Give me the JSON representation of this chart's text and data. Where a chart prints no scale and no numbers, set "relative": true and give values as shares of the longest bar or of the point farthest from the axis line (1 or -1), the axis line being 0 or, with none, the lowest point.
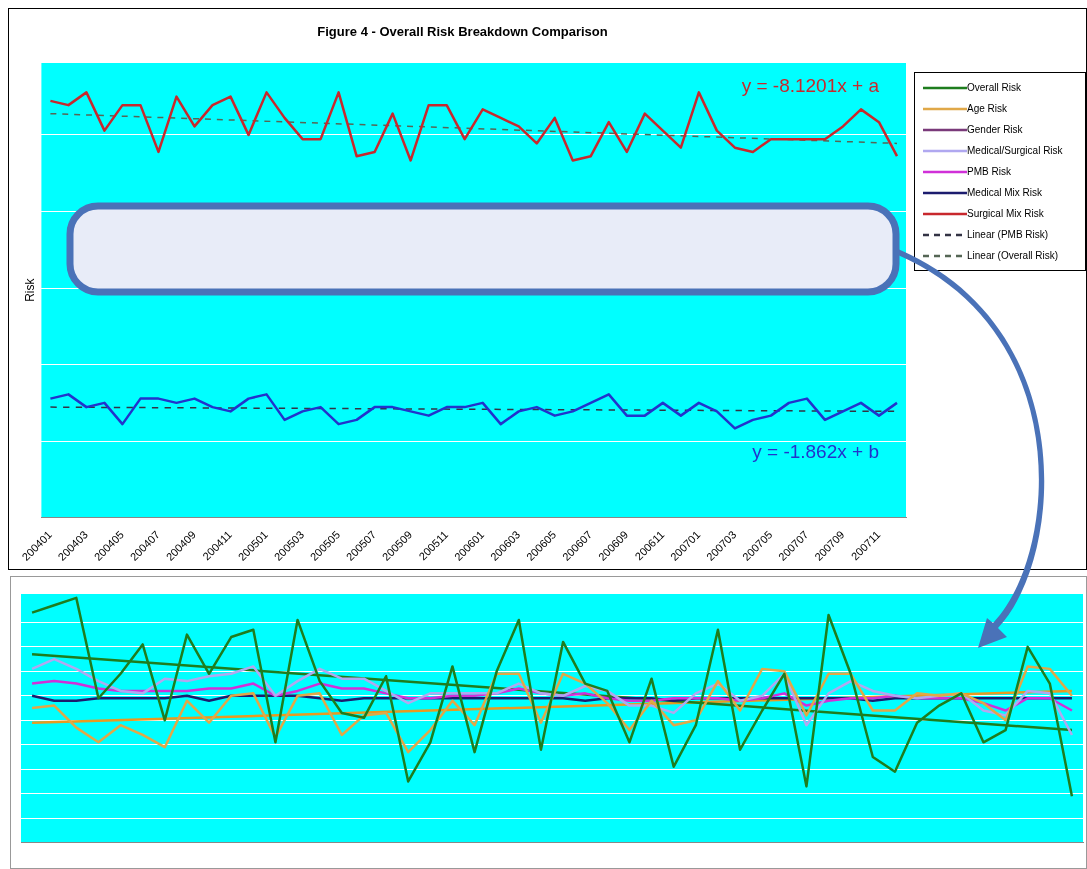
{
  "chart_data": [
    {
      "type": "line",
      "title": "Figure 4 - Overall Risk Breakdown Comparison",
      "ylabel": "Risk",
      "relative": true,
      "grid": "y",
      "legend": "right",
      "categories": [
        "200401",
        null,
        "200403",
        null,
        "200405",
        null,
        "200407",
        null,
        "200409",
        null,
        "200411",
        null,
        "200501",
        null,
        "200503",
        null,
        "200505",
        null,
        "200507",
        null,
        "200509",
        null,
        "200511",
        null,
        "200601",
        null,
        "200603",
        null,
        "200605",
        null,
        "200607",
        null,
        "200609",
        null,
        "200611",
        null,
        "200701",
        null,
        "200703",
        null,
        "200705",
        null,
        "200707",
        null,
        "200709",
        null,
        "200711",
        null
      ],
      "series": [
        {
          "name": "Surgical Mix Risk",
          "color": "#c8282d",
          "values": [
            0.98,
            0.97,
            1.0,
            0.91,
            0.97,
            0.97,
            0.86,
            0.99,
            0.92,
            0.97,
            0.99,
            0.9,
            1.0,
            0.94,
            0.89,
            0.89,
            1.0,
            0.85,
            0.86,
            0.95,
            0.84,
            0.97,
            0.97,
            0.89,
            0.96,
            0.94,
            0.92,
            0.88,
            0.94,
            0.84,
            0.85,
            0.93,
            0.86,
            0.95,
            0.91,
            0.87,
            1.0,
            0.91,
            0.87,
            0.86,
            0.89,
            0.89,
            0.89,
            0.89,
            0.92,
            0.96,
            0.93,
            0.85
          ]
        },
        {
          "color": "#2233cc",
          "values": [
            0.28,
            0.29,
            0.26,
            0.27,
            0.22,
            0.28,
            0.28,
            0.27,
            0.28,
            0.26,
            0.25,
            0.28,
            0.29,
            0.23,
            0.25,
            0.26,
            0.22,
            0.23,
            0.26,
            0.26,
            0.25,
            0.24,
            0.26,
            0.26,
            0.27,
            0.22,
            0.25,
            0.26,
            0.24,
            0.25,
            0.27,
            0.29,
            0.24,
            0.24,
            0.27,
            0.24,
            0.27,
            0.25,
            0.21,
            0.23,
            0.24,
            0.27,
            0.28,
            0.23,
            0.25,
            0.27,
            0.24,
            0.27
          ]
        },
        {
          "name": "Linear (PMB Risk)",
          "color": "#333344",
          "line_style": "dashed",
          "values": [
            0.26,
            null,
            null,
            null,
            null,
            null,
            null,
            null,
            null,
            null,
            null,
            null,
            null,
            null,
            null,
            null,
            null,
            null,
            null,
            null,
            null,
            null,
            null,
            null,
            null,
            null,
            null,
            null,
            null,
            null,
            null,
            null,
            null,
            null,
            null,
            null,
            null,
            null,
            null,
            null,
            null,
            null,
            null,
            null,
            null,
            null,
            null,
            0.25
          ]
        },
        {
          "name": "Linear (Overall Risk)",
          "color": "#556655",
          "line_style": "dashed",
          "values": [
            0.95,
            null,
            null,
            null,
            null,
            null,
            null,
            null,
            null,
            null,
            null,
            null,
            null,
            null,
            null,
            null,
            null,
            null,
            null,
            null,
            null,
            null,
            null,
            null,
            null,
            null,
            null,
            null,
            null,
            null,
            null,
            null,
            null,
            null,
            null,
            null,
            null,
            null,
            null,
            null,
            null,
            null,
            null,
            null,
            null,
            null,
            null,
            0.88
          ]
        }
      ],
      "annotations": [
        "y = -8.1201x + a",
        "y = -1.862x + b"
      ]
    },
    {
      "type": "line",
      "relative": true,
      "grid": "y",
      "legend": "right",
      "categories": [
        null,
        null,
        null,
        null,
        null,
        null,
        null,
        null,
        null,
        null,
        null,
        null,
        null,
        null,
        null,
        null,
        null,
        null,
        null,
        null,
        null,
        null,
        null,
        null,
        null,
        null,
        null,
        null,
        null,
        null,
        null,
        null,
        null,
        null,
        null,
        null,
        null,
        null,
        null,
        null,
        null,
        null,
        null,
        null,
        null,
        null,
        null,
        null
      ],
      "series": [
        {
          "name": "Overall Risk",
          "color": "#1e7d1e",
          "values": [
            0.94,
            0.97,
            1.0,
            0.59,
            0.69,
            0.81,
            0.5,
            0.85,
            0.69,
            0.84,
            0.87,
            0.41,
            0.91,
            0.66,
            0.53,
            0.51,
            0.68,
            0.25,
            0.41,
            0.72,
            0.37,
            0.7,
            0.91,
            0.38,
            0.82,
            0.65,
            0.62,
            0.41,
            0.67,
            0.31,
            0.48,
            0.87,
            0.38,
            0.54,
            0.69,
            0.23,
            0.93,
            0.69,
            0.35,
            0.29,
            0.49,
            0.56,
            0.61,
            0.41,
            0.46,
            0.8,
            0.65,
            0.19
          ]
        },
        {
          "name": "Age Risk",
          "color": "#e0a848",
          "values": [
            0.55,
            0.56,
            0.47,
            0.41,
            0.48,
            0.44,
            0.39,
            0.58,
            0.49,
            0.6,
            0.61,
            0.43,
            0.6,
            0.61,
            0.44,
            0.52,
            0.53,
            0.37,
            0.46,
            0.58,
            0.48,
            0.69,
            0.69,
            0.49,
            0.69,
            0.65,
            0.57,
            0.46,
            0.58,
            0.48,
            0.5,
            0.66,
            0.54,
            0.71,
            0.7,
            0.52,
            0.69,
            0.69,
            0.54,
            0.54,
            0.61,
            0.6,
            0.61,
            0.57,
            0.5,
            0.72,
            0.71,
            0.6
          ]
        },
        {
          "name": "Gender Risk",
          "color": "#7a3a7a",
          "values": [
            null,
            null,
            null,
            null,
            null,
            null,
            null,
            null,
            null,
            null,
            null,
            null,
            null,
            null,
            null,
            null,
            null,
            null,
            null,
            null,
            null,
            null,
            null,
            null,
            null,
            null,
            null,
            null,
            null,
            null,
            null,
            null,
            null,
            null,
            null,
            null,
            null,
            null,
            null,
            null,
            null,
            null,
            null,
            null,
            null,
            null,
            null,
            null
          ]
        },
        {
          "name": "Medical/Surgical Risk",
          "color": "#b0a8f0",
          "values": [
            0.71,
            0.75,
            0.71,
            0.66,
            0.62,
            0.61,
            0.67,
            0.66,
            0.68,
            0.69,
            0.72,
            0.6,
            0.66,
            0.71,
            0.67,
            0.67,
            0.62,
            0.57,
            0.61,
            0.61,
            0.61,
            0.61,
            0.65,
            0.61,
            0.6,
            0.64,
            0.62,
            0.56,
            0.56,
            0.53,
            0.61,
            0.65,
            0.58,
            0.6,
            0.69,
            0.48,
            0.61,
            0.66,
            0.62,
            0.6,
            0.59,
            0.6,
            0.61,
            0.54,
            0.52,
            0.62,
            0.61,
            0.44
          ]
        },
        {
          "name": "PMB Risk",
          "color": "#d030d8",
          "values": [
            0.65,
            0.66,
            0.65,
            0.63,
            0.62,
            0.62,
            0.62,
            0.62,
            0.63,
            0.63,
            0.65,
            0.6,
            0.62,
            0.65,
            0.63,
            0.63,
            0.61,
            0.59,
            0.59,
            0.6,
            0.6,
            0.61,
            0.63,
            0.61,
            0.6,
            0.61,
            0.59,
            0.58,
            0.58,
            0.59,
            0.59,
            0.59,
            0.58,
            0.59,
            0.61,
            0.56,
            0.58,
            0.59,
            0.59,
            0.6,
            0.59,
            0.59,
            0.59,
            0.57,
            0.54,
            0.59,
            0.59,
            0.54
          ]
        },
        {
          "name": "Medical Mix Risk",
          "color": "#1c1c6e",
          "values": [
            0.6,
            0.58,
            0.58,
            0.59,
            0.59,
            0.59,
            0.59,
            0.6,
            0.58,
            0.6,
            0.6,
            0.6,
            0.6,
            0.59,
            0.58,
            0.59,
            0.59,
            0.59,
            0.59,
            0.59,
            0.59,
            0.59,
            0.59,
            0.59,
            0.59,
            0.58,
            0.59,
            0.59,
            0.59,
            0.58,
            0.59,
            0.59,
            0.59,
            0.59,
            0.59,
            0.59,
            0.59,
            0.59,
            0.58,
            0.59,
            0.59,
            0.59,
            0.59,
            0.59,
            0.59,
            0.59,
            0.59,
            0.59
          ]
        },
        {
          "color": "#1e7d1e",
          "values": [
            0.77,
            null,
            null,
            null,
            null,
            null,
            null,
            null,
            null,
            null,
            null,
            null,
            null,
            null,
            null,
            null,
            null,
            null,
            null,
            null,
            null,
            null,
            null,
            null,
            null,
            null,
            null,
            null,
            null,
            null,
            null,
            null,
            null,
            null,
            null,
            null,
            null,
            null,
            null,
            null,
            null,
            null,
            null,
            null,
            null,
            null,
            null,
            0.46
          ]
        },
        {
          "color": "#e89a20",
          "values": [
            0.49,
            null,
            null,
            null,
            null,
            null,
            null,
            null,
            null,
            null,
            null,
            null,
            null,
            null,
            null,
            null,
            null,
            null,
            null,
            null,
            null,
            null,
            null,
            null,
            null,
            null,
            null,
            null,
            null,
            null,
            null,
            null,
            null,
            null,
            null,
            null,
            null,
            null,
            null,
            null,
            null,
            null,
            null,
            null,
            null,
            null,
            null,
            0.62
          ]
        }
      ]
    }
  ]
}
